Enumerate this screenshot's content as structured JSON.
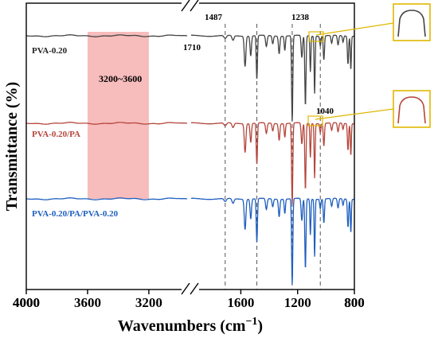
{
  "chart_data": {
    "type": "line",
    "title": "",
    "xlabel": "Wavenumbers (cm",
    "xlabel_sup": "−1",
    "xlabel_close": ")",
    "ylabel": "Transmittance (%)",
    "x_axis": {
      "reversed": true,
      "broken": true,
      "segments": [
        {
          "range": [
            4000,
            2950
          ],
          "ticks": [
            "4000",
            "3600",
            "3200"
          ]
        },
        {
          "range": [
            1950,
            800
          ],
          "ticks": [
            "1600",
            "1200",
            "800"
          ]
        }
      ]
    },
    "y_ticks_shown": false,
    "grid": false,
    "highlight_band": {
      "x": [
        3600,
        3200
      ],
      "color": "#f4a6a6",
      "label": "3200~3600"
    },
    "reference_lines": [
      {
        "x": 1710,
        "label": "1710"
      },
      {
        "x": 1487,
        "label": "1487"
      },
      {
        "x": 1238,
        "label": "1238"
      },
      {
        "x": 1040,
        "label": "1040"
      }
    ],
    "series": [
      {
        "name": "PVA-0.20",
        "color": "#444444",
        "baseline": 45,
        "scale": 1.0
      },
      {
        "name": "PVA-0.20/PA",
        "color": "#b5463b",
        "baseline": 155,
        "scale": 0.95
      },
      {
        "name": "PVA-0.20/PA/PVA-0.20",
        "color": "#1f5fbf",
        "baseline": 250,
        "scale": 1.0
      }
    ],
    "peaks": [
      {
        "x": 1710,
        "depth": 4,
        "width": 12
      },
      {
        "x": 1655,
        "depth": 6,
        "width": 10
      },
      {
        "x": 1570,
        "depth": 38,
        "width": 8
      },
      {
        "x": 1530,
        "depth": 25,
        "width": 7
      },
      {
        "x": 1487,
        "depth": 55,
        "width": 6
      },
      {
        "x": 1420,
        "depth": 14,
        "width": 8
      },
      {
        "x": 1375,
        "depth": 10,
        "width": 7
      },
      {
        "x": 1330,
        "depth": 22,
        "width": 7
      },
      {
        "x": 1290,
        "depth": 18,
        "width": 6
      },
      {
        "x": 1238,
        "depth": 108,
        "width": 6
      },
      {
        "x": 1170,
        "depth": 28,
        "width": 7
      },
      {
        "x": 1145,
        "depth": 88,
        "width": 6
      },
      {
        "x": 1110,
        "depth": 45,
        "width": 5
      },
      {
        "x": 1080,
        "depth": 72,
        "width": 5
      },
      {
        "x": 1040,
        "depth": 12,
        "width": 6
      },
      {
        "x": 1015,
        "depth": 30,
        "width": 6
      },
      {
        "x": 960,
        "depth": 10,
        "width": 7
      },
      {
        "x": 915,
        "depth": 12,
        "width": 7
      },
      {
        "x": 880,
        "depth": 8,
        "width": 6
      },
      {
        "x": 845,
        "depth": 35,
        "width": 6
      },
      {
        "x": 825,
        "depth": 42,
        "width": 5
      }
    ]
  }
}
